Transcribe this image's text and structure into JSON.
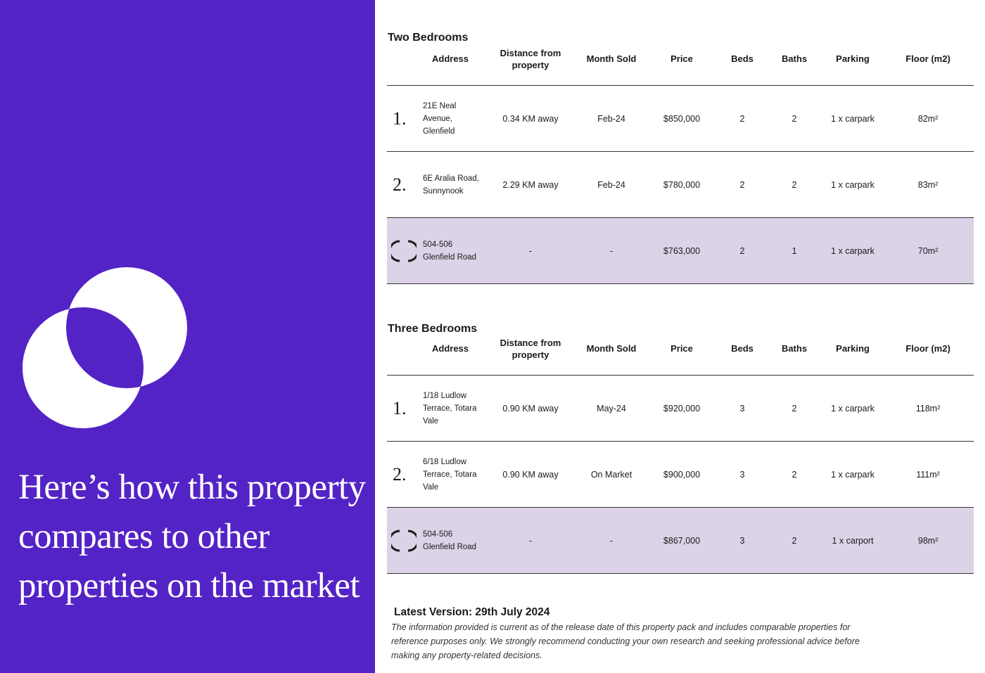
{
  "headline": "Here’s how this property compares to other properties on the market",
  "columns": {
    "address": "Address",
    "distance": "Distance from property",
    "month_sold": "Month Sold",
    "price": "Price",
    "beds": "Beds",
    "baths": "Baths",
    "parking": "Parking",
    "floor": "Floor (m2)"
  },
  "two_bedrooms": {
    "title": "Two Bedrooms",
    "rows": [
      {
        "num": "1.",
        "address": "21E Neal Avenue, Glenfield",
        "distance": "0.34 KM away",
        "month": "Feb-24",
        "price": "$850,000",
        "beds": "2",
        "baths": "2",
        "parking": "1 x carpark",
        "floor": "82m²"
      },
      {
        "num": "2.",
        "address": "6E Aralia Road, Sunnynook",
        "distance": "2.29 KM away",
        "month": "Feb-24",
        "price": "$780,000",
        "beds": "2",
        "baths": "2",
        "parking": "1 x carpark",
        "floor": "83m²"
      },
      {
        "num": "",
        "address": "504-506 Glenfield Road",
        "distance": "-",
        "month": "-",
        "price": "$763,000",
        "beds": "2",
        "baths": "1",
        "parking": "1 x carpark",
        "floor": "70m²"
      }
    ]
  },
  "three_bedrooms": {
    "title": "Three Bedrooms",
    "rows": [
      {
        "num": "1.",
        "address": "1/18 Ludlow Terrace, Totara Vale",
        "distance": "0.90 KM away",
        "month": "May-24",
        "price": "$920,000",
        "beds": "3",
        "baths": "2",
        "parking": "1 x carpark",
        "floor": "118m²"
      },
      {
        "num": "2.",
        "address": "6/18 Ludlow Terrace, Totara Vale",
        "distance": "0.90 KM away",
        "month": "On Market",
        "price": "$900,000",
        "beds": "3",
        "baths": "2",
        "parking": "1 x carpark",
        "floor": "111m²"
      },
      {
        "num": "",
        "address": "504-506 Glenfield Road",
        "distance": "-",
        "month": "-",
        "price": "$867,000",
        "beds": "3",
        "baths": "2",
        "parking": "1 x carport",
        "floor": "98m²"
      }
    ]
  },
  "footer": {
    "title": "Latest Version: 29th July 2024",
    "text": "The information provided is current as of the release date of this property pack and includes comparable properties for reference purposes only. We strongly recommend conducting your own research and seeking professional advice before making any property-related decisions."
  },
  "colors": {
    "panel": "#5423C6",
    "highlight_row": "#DCD3E8",
    "rule": "#333333"
  },
  "icons": {
    "logo": "overlapping-circles-logo",
    "subject_marker": "subject-property-marker-icon"
  }
}
